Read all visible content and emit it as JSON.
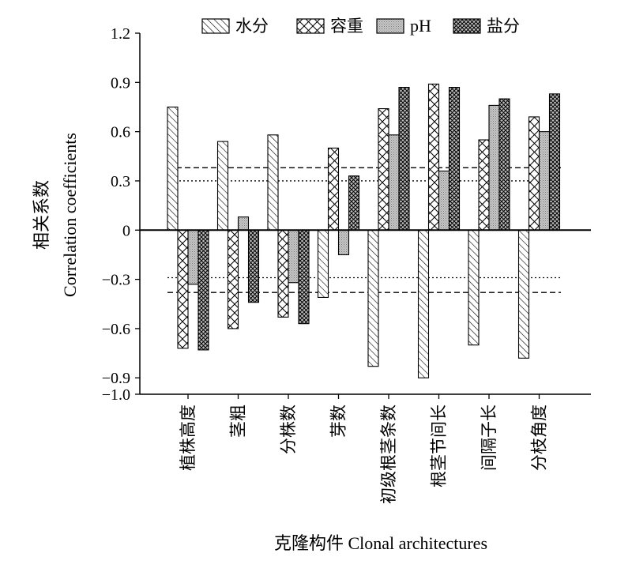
{
  "chart_data": {
    "type": "bar",
    "title": "",
    "xlabel": "克隆构件 Clonal architectures",
    "ylabel_cn": "相关系数",
    "ylabel_en": "Correlation coefficients",
    "ylim": [
      -1.0,
      1.2
    ],
    "yticks": [
      1.2,
      0.9,
      0.6,
      0.3,
      0,
      -0.3,
      -0.6,
      -0.9,
      -1.0
    ],
    "ytick_labels": [
      "1.2",
      "0.9",
      "0.6",
      "0.3",
      "0",
      "−0.3",
      "−0.6",
      "−0.9",
      "−1.0"
    ],
    "categories": [
      "植株高度",
      "茎粗",
      "分株数",
      "芽数",
      "初级根茎条数",
      "根茎节间长",
      "间隔子长",
      "分枝角度"
    ],
    "series": [
      {
        "name": "水分",
        "pattern": "diag",
        "values": [
          0.75,
          0.54,
          0.58,
          -0.41,
          -0.83,
          -0.9,
          -0.7,
          -0.78
        ]
      },
      {
        "name": "容重",
        "pattern": "cross",
        "values": [
          -0.72,
          -0.6,
          -0.53,
          0.5,
          0.74,
          0.89,
          0.55,
          0.69
        ]
      },
      {
        "name": "pH",
        "pattern": "dots",
        "values": [
          -0.33,
          0.08,
          -0.32,
          -0.15,
          0.58,
          0.36,
          0.76,
          0.6
        ]
      },
      {
        "name": "盐分",
        "pattern": "dense",
        "values": [
          -0.73,
          -0.44,
          -0.57,
          0.33,
          0.87,
          0.87,
          0.8,
          0.83
        ]
      }
    ],
    "reference_lines": [
      {
        "style": "dashed",
        "value": 0.38
      },
      {
        "style": "dotted",
        "value": 0.3
      },
      {
        "style": "dotted",
        "value": -0.29
      },
      {
        "style": "dashed",
        "value": -0.38
      }
    ],
    "legend": {
      "position": "top"
    },
    "grid": false
  }
}
